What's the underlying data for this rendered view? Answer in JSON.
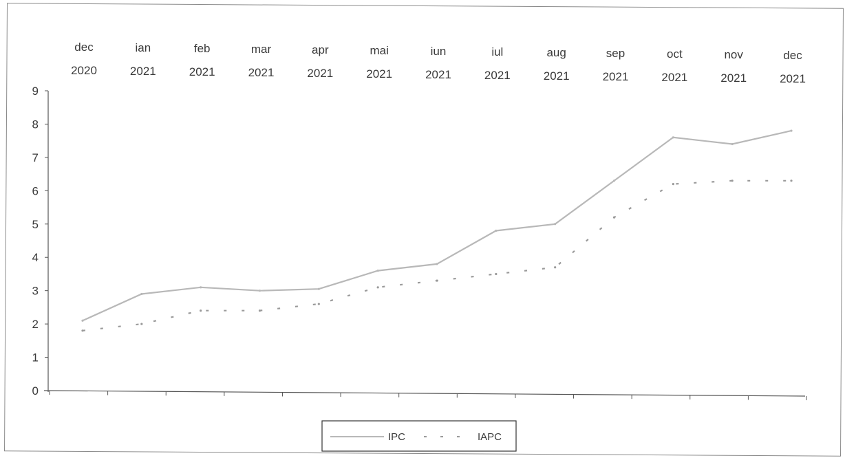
{
  "chart_data": {
    "type": "line",
    "title": "",
    "xlabel": "",
    "ylabel": "",
    "categories": [
      [
        "dec",
        "2020"
      ],
      [
        "ian",
        "2021"
      ],
      [
        "feb",
        "2021"
      ],
      [
        "mar",
        "2021"
      ],
      [
        "apr",
        "2021"
      ],
      [
        "mai",
        "2021"
      ],
      [
        "iun",
        "2021"
      ],
      [
        "iul",
        "2021"
      ],
      [
        "aug",
        "2021"
      ],
      [
        "sep",
        "2021"
      ],
      [
        "oct",
        "2021"
      ],
      [
        "nov",
        "2021"
      ],
      [
        "dec",
        "2021"
      ]
    ],
    "ylim": [
      0,
      9
    ],
    "yticks": [
      "0",
      "1",
      "2",
      "3",
      "4",
      "5",
      "6",
      "7",
      "8",
      "9"
    ],
    "x_axis_position": "top",
    "grid": false,
    "legend_position": "bottom-center",
    "series": [
      {
        "name": "IPC",
        "style": "solid",
        "color": "#b8b8b8",
        "values": [
          2.1,
          2.9,
          3.1,
          3.0,
          3.05,
          3.6,
          3.8,
          4.8,
          5.0,
          6.3,
          7.6,
          7.4,
          7.8
        ]
      },
      {
        "name": "IAPC",
        "style": "dashed",
        "color": "#9a9a9a",
        "values": [
          1.8,
          2.0,
          2.4,
          2.4,
          2.6,
          3.1,
          3.3,
          3.5,
          3.7,
          5.2,
          6.2,
          6.3,
          6.3
        ]
      }
    ]
  }
}
